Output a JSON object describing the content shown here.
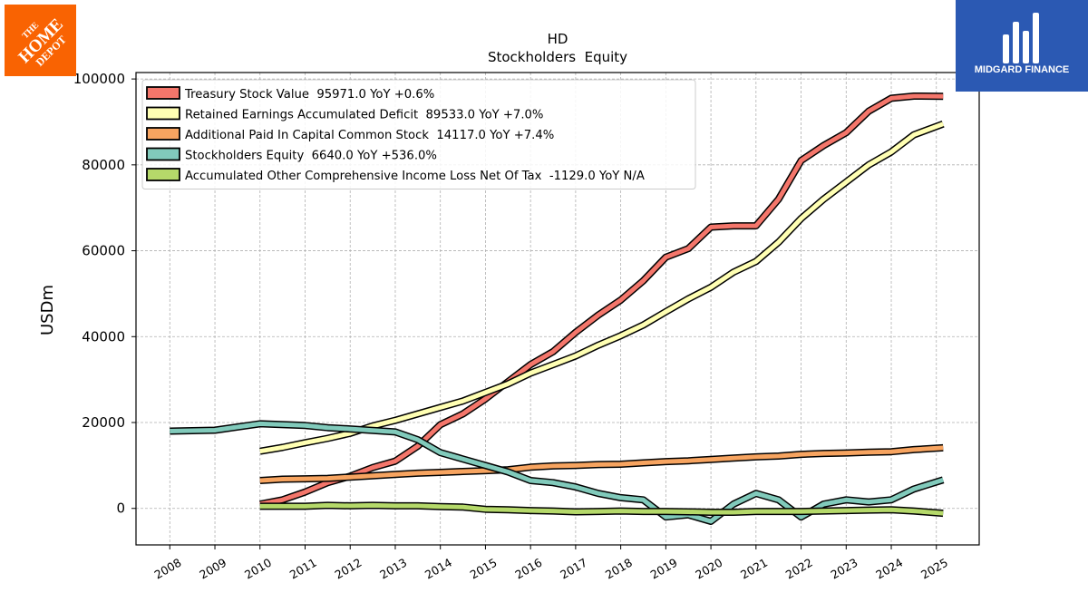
{
  "logos": {
    "home_depot": {
      "label": "THE HOME DEPOT",
      "color": "#F96302"
    },
    "midgard": {
      "label": "MIDGARD FINANCE",
      "color": "#2B59B3"
    }
  },
  "chart_data": {
    "type": "line",
    "title": "HD",
    "subtitle": "Stockholders  Equity",
    "xlabel": "",
    "ylabel": "USDm",
    "xlim": [
      2007.25,
      2025.95
    ],
    "ylim": [
      -8500,
      101500
    ],
    "x_ticks": [
      "2008",
      "2009",
      "2010",
      "2011",
      "2012",
      "2013",
      "2014",
      "2015",
      "2016",
      "2017",
      "2018",
      "2019",
      "2020",
      "2021",
      "2022",
      "2023",
      "2024",
      "2025"
    ],
    "y_ticks": [
      0,
      20000,
      40000,
      60000,
      80000,
      100000
    ],
    "y_tick_labels": [
      "0",
      "20000",
      "40000",
      "60000",
      "80000",
      "100000"
    ],
    "grid": true,
    "legend_position": "top-left",
    "series": [
      {
        "name": "Treasury Stock Value  95971.0 YoY +0.6%",
        "color": "#F4766B",
        "x": [
          2010,
          2010.5,
          2011,
          2011.5,
          2012,
          2012.5,
          2013,
          2013.5,
          2014,
          2014.5,
          2015,
          2015.5,
          2016,
          2016.5,
          2017,
          2017.5,
          2018,
          2018.5,
          2019,
          2019.5,
          2020,
          2020.5,
          2021,
          2021.5,
          2022,
          2022.5,
          2023,
          2023.5,
          2024,
          2024.5,
          2025.15
        ],
        "y": [
          1000,
          2000,
          3800,
          6000,
          7500,
          9500,
          11000,
          14500,
          19500,
          22000,
          25500,
          29500,
          33500,
          36500,
          41000,
          45000,
          48500,
          53000,
          58500,
          60500,
          65500,
          65800,
          65800,
          72000,
          81000,
          84500,
          87500,
          92500,
          95500,
          96000,
          95971
        ]
      },
      {
        "name": "Retained Earnings Accumulated Deficit  89533.0 YoY +7.0%",
        "color": "#FFFFB3",
        "x": [
          2010,
          2010.5,
          2011,
          2011.5,
          2012,
          2012.5,
          2013,
          2013.5,
          2014,
          2014.5,
          2015,
          2015.5,
          2016,
          2016.5,
          2017,
          2017.5,
          2018,
          2018.5,
          2019,
          2019.5,
          2020,
          2020.5,
          2021,
          2021.5,
          2022,
          2022.5,
          2023,
          2023.5,
          2024,
          2024.5,
          2025.15
        ],
        "y": [
          13300,
          14200,
          15300,
          16300,
          17500,
          19200,
          20500,
          22000,
          23500,
          25000,
          27000,
          29000,
          31500,
          33500,
          35500,
          38000,
          40200,
          42700,
          45800,
          48800,
          51500,
          55000,
          57500,
          62000,
          67500,
          72000,
          76000,
          80000,
          83000,
          87000,
          89533
        ]
      },
      {
        "name": "Additional Paid In Capital Common Stock  14117.0 YoY +7.4%",
        "color": "#F7A460",
        "x": [
          2010,
          2010.5,
          2011,
          2011.5,
          2012,
          2012.5,
          2013,
          2013.5,
          2014,
          2014.5,
          2015,
          2015.5,
          2016,
          2016.5,
          2017,
          2017.5,
          2018,
          2018.5,
          2019,
          2019.5,
          2020,
          2020.5,
          2021,
          2021.5,
          2022,
          2022.5,
          2023,
          2023.5,
          2024,
          2024.5,
          2025.15
        ],
        "y": [
          6500,
          6800,
          6900,
          7000,
          7300,
          7600,
          7900,
          8200,
          8400,
          8600,
          8800,
          9000,
          9600,
          9900,
          10000,
          10200,
          10300,
          10600,
          10900,
          11100,
          11400,
          11700,
          12000,
          12200,
          12600,
          12800,
          12900,
          13100,
          13200,
          13700,
          14117
        ]
      },
      {
        "name": "Stockholders Equity  6640.0 YoY +536.0%",
        "color": "#81CABB",
        "x": [
          2008,
          2009,
          2010,
          2011,
          2011.5,
          2012,
          2013,
          2013.5,
          2014,
          2014.5,
          2015,
          2015.5,
          2016,
          2016.5,
          2017,
          2017.5,
          2018,
          2018.5,
          2019,
          2019.5,
          2020,
          2020.5,
          2021,
          2021.5,
          2022,
          2022.5,
          2023,
          2023.5,
          2024,
          2024.5,
          2025.15
        ],
        "y": [
          18000,
          18200,
          19700,
          19300,
          18800,
          18500,
          17800,
          16000,
          13000,
          11500,
          10000,
          8500,
          6500,
          6000,
          5000,
          3500,
          2500,
          2000,
          -2000,
          -1500,
          -3000,
          1000,
          3500,
          2000,
          -2000,
          1000,
          2000,
          1500,
          2000,
          4500,
          6640
        ]
      },
      {
        "name": "Accumulated Other Comprehensive Income Loss Net Of Tax  -1129.0 YoY N/A",
        "color": "#B5D96A",
        "x": [
          2010,
          2010.5,
          2011,
          2011.5,
          2012,
          2012.5,
          2013,
          2013.5,
          2014,
          2014.5,
          2015,
          2015.5,
          2016,
          2016.5,
          2017,
          2017.5,
          2018,
          2018.5,
          2019,
          2019.5,
          2020,
          2020.5,
          2021,
          2021.5,
          2022,
          2022.5,
          2023,
          2023.5,
          2024,
          2024.5,
          2025.15
        ],
        "y": [
          500,
          500,
          500,
          700,
          600,
          700,
          600,
          600,
          400,
          300,
          -200,
          -300,
          -500,
          -600,
          -800,
          -700,
          -600,
          -700,
          -700,
          -800,
          -900,
          -900,
          -700,
          -700,
          -700,
          -600,
          -500,
          -400,
          -300,
          -600,
          -1129
        ]
      }
    ]
  }
}
